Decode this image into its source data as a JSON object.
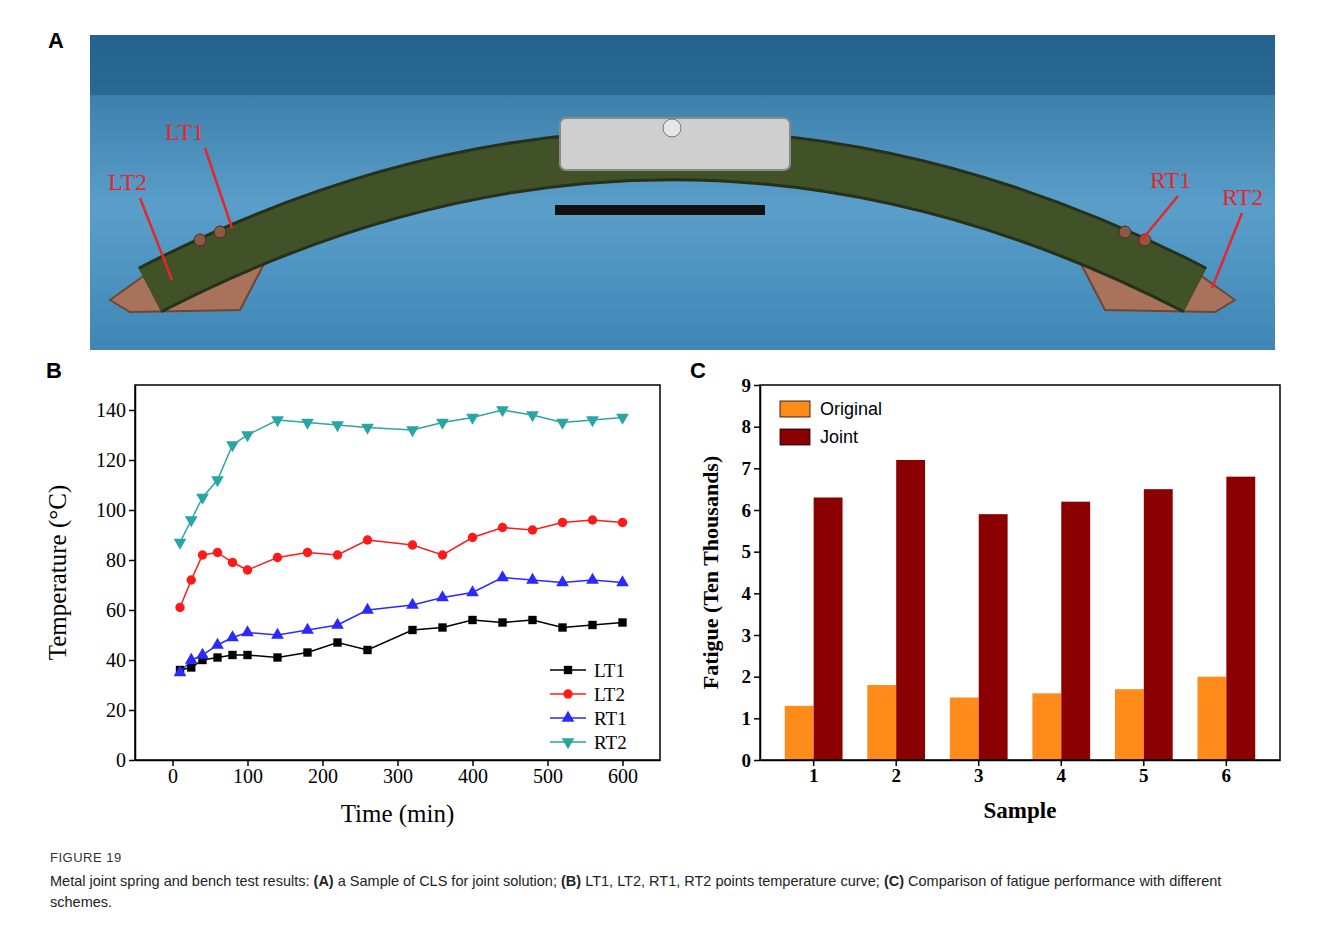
{
  "panel_a": {
    "letter": "A",
    "labels": [
      "LT1",
      "LT2",
      "RT1",
      "RT2"
    ]
  },
  "chart_data": [
    {
      "panel": "B",
      "type": "line",
      "x_label": "Time (min)",
      "y_label": "Temperature (°C)",
      "x": [
        10,
        25,
        40,
        60,
        80,
        100,
        140,
        180,
        220,
        260,
        320,
        360,
        400,
        440,
        480,
        520,
        560,
        600
      ],
      "xlim": [
        -50,
        650
      ],
      "xticks": [
        0,
        100,
        200,
        300,
        400,
        500,
        600
      ],
      "ylim": [
        0,
        150
      ],
      "yticks": [
        0,
        20,
        40,
        60,
        80,
        100,
        120,
        140
      ],
      "legend": "lower right",
      "series": [
        {
          "name": "LT1",
          "color": "#000000",
          "marker": "square",
          "values": [
            36,
            37,
            40,
            41,
            42,
            42,
            41,
            43,
            47,
            44,
            52,
            53,
            56,
            55,
            56,
            53,
            54,
            55
          ]
        },
        {
          "name": "LT2",
          "color": "#ff1a1a",
          "marker": "circle",
          "values": [
            61,
            72,
            82,
            83,
            79,
            76,
            81,
            83,
            82,
            88,
            86,
            82,
            89,
            93,
            92,
            95,
            96,
            95
          ]
        },
        {
          "name": "RT1",
          "color": "#2a2aff",
          "marker": "triangle",
          "values": [
            35,
            40,
            42,
            46,
            49,
            51,
            50,
            52,
            54,
            60,
            62,
            65,
            67,
            73,
            72,
            71,
            72,
            71
          ]
        },
        {
          "name": "RT2",
          "color": "#2aa5a5",
          "marker": "triangle-down",
          "values": [
            87,
            96,
            105,
            112,
            126,
            130,
            136,
            135,
            134,
            133,
            132,
            135,
            137,
            140,
            138,
            135,
            136,
            137
          ]
        }
      ]
    },
    {
      "panel": "C",
      "type": "bar",
      "x_label": "Sample",
      "y_label": "Fatigue (Ten Thousands)",
      "categories": [
        "1",
        "2",
        "3",
        "4",
        "5",
        "6"
      ],
      "ylim": [
        0,
        9
      ],
      "yticks": [
        0,
        1,
        2,
        3,
        4,
        5,
        6,
        7,
        8,
        9
      ],
      "legend": "upper left",
      "series": [
        {
          "name": "Original",
          "color": "#ff8c1a",
          "values": [
            1.3,
            1.8,
            1.5,
            1.6,
            1.7,
            2.0
          ]
        },
        {
          "name": "Joint",
          "color": "#8b0000",
          "values": [
            6.3,
            7.2,
            5.9,
            6.2,
            6.5,
            6.8
          ]
        }
      ]
    }
  ],
  "caption": {
    "figure": "FIGURE 19",
    "parts": [
      {
        "text": "Metal joint spring and bench test results: ",
        "bold": false
      },
      {
        "text": "(A)",
        "bold": true
      },
      {
        "text": " a Sample of CLS for joint solution; ",
        "bold": false
      },
      {
        "text": "(B)",
        "bold": true
      },
      {
        "text": " LT1, LT2, RT1, RT2 points temperature curve; ",
        "bold": false
      },
      {
        "text": "(C)",
        "bold": true
      },
      {
        "text": " Comparison of fatigue performance with different schemes.",
        "bold": false
      }
    ]
  }
}
